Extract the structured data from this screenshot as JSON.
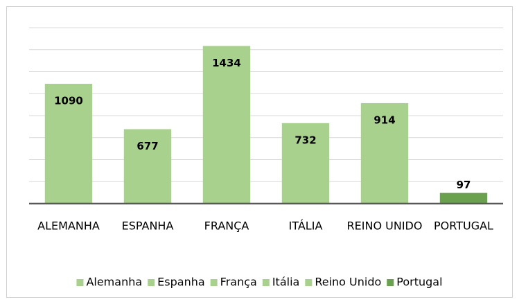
{
  "chart_data": {
    "type": "bar",
    "categories": [
      "ALEMANHA",
      "ESPANHA",
      "FRANÇA",
      "ITÁLIA",
      "REINO UNIDO",
      "PORTUGAL"
    ],
    "values": [
      1090,
      677,
      1434,
      732,
      914,
      97
    ],
    "colors": [
      "#a9d18e",
      "#a9d18e",
      "#a9d18e",
      "#a9d18e",
      "#a9d18e",
      "#6aa14f"
    ],
    "legend": [
      "Alemanha",
      "Espanha",
      "França",
      "Itália",
      "Reino Unido",
      "Portugal"
    ],
    "ylim": [
      0,
      1600
    ],
    "yticks": [
      0,
      200,
      400,
      600,
      800,
      1000,
      1200,
      1400,
      1600
    ],
    "grid": true
  }
}
